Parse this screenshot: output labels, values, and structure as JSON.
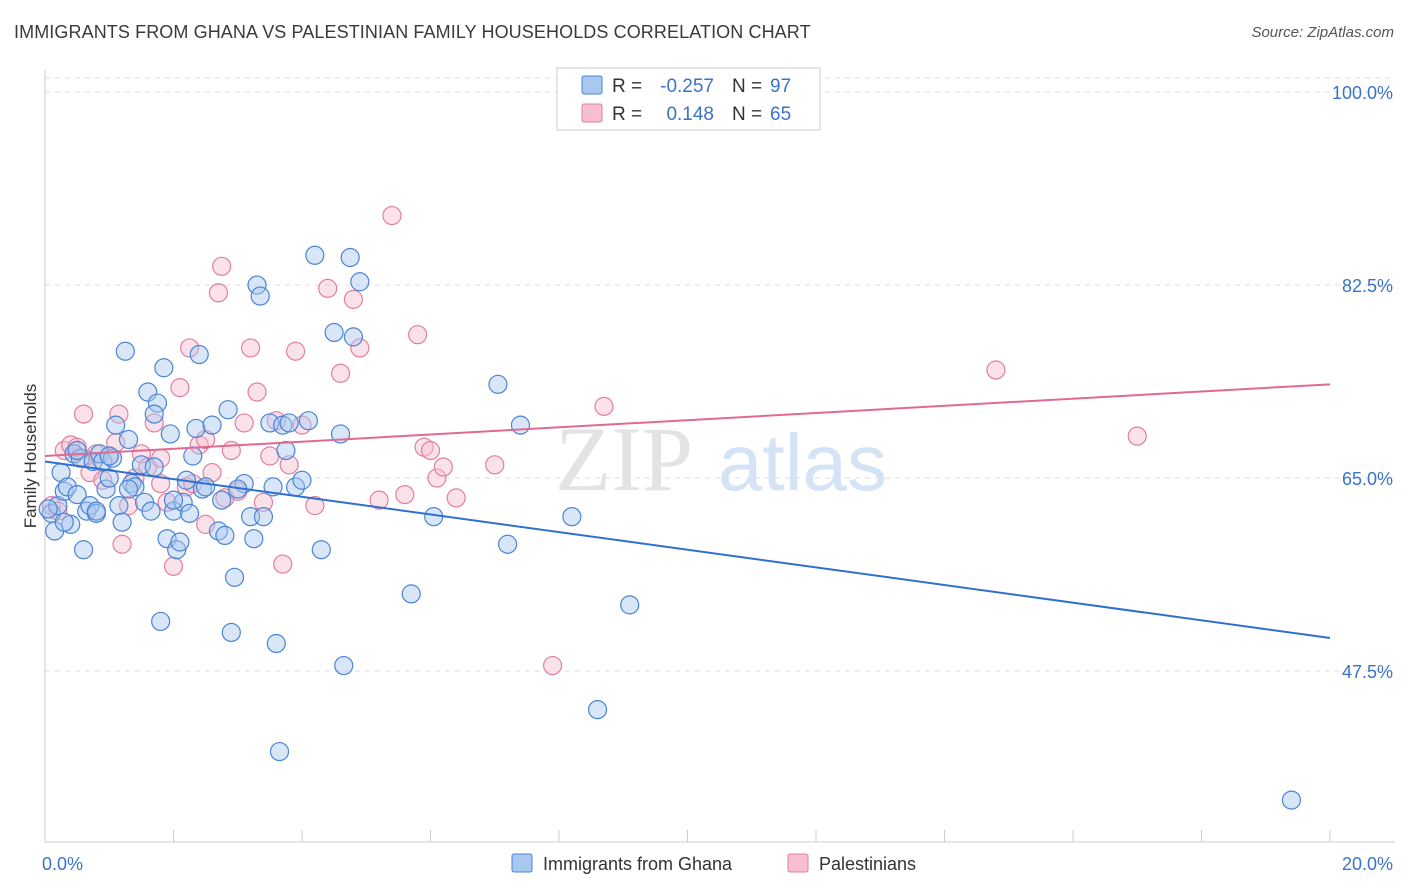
{
  "title": "IMMIGRANTS FROM GHANA VS PALESTINIAN FAMILY HOUSEHOLDS CORRELATION CHART",
  "source": "Source: ZipAtlas.com",
  "watermark": {
    "zip": "ZIP",
    "atlas": "atlas"
  },
  "colors": {
    "blue_fill": "#a8c8f0",
    "blue_stroke": "#4a84d4",
    "blue_line": "#2f6fcf",
    "pink_fill": "#f6bfd0",
    "pink_stroke": "#e07fa0",
    "pink_line": "#e06a92",
    "grid": "#dddddd",
    "tick_label": "#3a73c8"
  },
  "legend": {
    "rows": [
      {
        "r_label": "R =",
        "r_value": "-0.257",
        "n_label": "N =",
        "n_value": "97"
      },
      {
        "r_label": "R =",
        "r_value": "0.148",
        "n_label": "N =",
        "n_value": "65"
      }
    ]
  },
  "chart_data": {
    "type": "scatter",
    "title": "IMMIGRANTS FROM GHANA VS PALESTINIAN FAMILY HOUSEHOLDS CORRELATION CHART",
    "xlabel": "",
    "ylabel": "Family Households",
    "xlim": [
      0,
      20
    ],
    "ylim": [
      32,
      102
    ],
    "x_tick_labels": [
      "0.0%",
      "20.0%"
    ],
    "y_ticks": [
      100.0,
      82.5,
      65.0,
      47.5
    ],
    "y_tick_labels": [
      "100.0%",
      "82.5%",
      "65.0%",
      "47.5%"
    ],
    "grid": true,
    "legend_position": "top-center",
    "series": [
      {
        "name": "Immigrants from Ghana",
        "trend": [
          [
            0,
            66.5
          ],
          [
            20,
            50.5
          ]
        ],
        "points": [
          [
            0.1,
            61.8
          ],
          [
            0.15,
            60.2
          ],
          [
            0.2,
            62.5
          ],
          [
            0.25,
            65.5
          ],
          [
            0.3,
            63.8
          ],
          [
            0.35,
            64.2
          ],
          [
            0.4,
            60.8
          ],
          [
            0.45,
            67.2
          ],
          [
            0.5,
            63.5
          ],
          [
            0.55,
            66.8
          ],
          [
            0.6,
            58.5
          ],
          [
            0.65,
            62.0
          ],
          [
            0.7,
            62.5
          ],
          [
            0.75,
            66.5
          ],
          [
            0.8,
            61.8
          ],
          [
            0.85,
            67.2
          ],
          [
            0.9,
            66.5
          ],
          [
            0.95,
            64.0
          ],
          [
            1.0,
            65.0
          ],
          [
            1.05,
            66.8
          ],
          [
            1.1,
            69.8
          ],
          [
            1.15,
            62.5
          ],
          [
            1.2,
            61.0
          ],
          [
            1.25,
            76.5
          ],
          [
            1.3,
            68.5
          ],
          [
            1.35,
            64.5
          ],
          [
            1.4,
            64.2
          ],
          [
            1.5,
            66.2
          ],
          [
            1.55,
            62.8
          ],
          [
            1.6,
            72.8
          ],
          [
            1.65,
            62.0
          ],
          [
            1.7,
            66.0
          ],
          [
            1.75,
            71.8
          ],
          [
            1.8,
            52.0
          ],
          [
            1.85,
            75.0
          ],
          [
            1.9,
            59.5
          ],
          [
            1.95,
            69.0
          ],
          [
            2.0,
            62.0
          ],
          [
            2.05,
            58.5
          ],
          [
            2.1,
            59.2
          ],
          [
            2.15,
            62.8
          ],
          [
            2.2,
            64.8
          ],
          [
            2.25,
            61.8
          ],
          [
            2.3,
            67.0
          ],
          [
            2.35,
            69.5
          ],
          [
            2.4,
            76.2
          ],
          [
            2.45,
            64.0
          ],
          [
            2.5,
            64.2
          ],
          [
            2.6,
            69.8
          ],
          [
            2.7,
            60.2
          ],
          [
            2.75,
            63.0
          ],
          [
            2.8,
            59.8
          ],
          [
            2.85,
            71.2
          ],
          [
            2.9,
            51.0
          ],
          [
            2.95,
            56.0
          ],
          [
            3.1,
            64.5
          ],
          [
            3.2,
            61.5
          ],
          [
            3.25,
            59.5
          ],
          [
            3.3,
            82.5
          ],
          [
            3.35,
            81.5
          ],
          [
            3.4,
            61.5
          ],
          [
            3.5,
            70.0
          ],
          [
            3.55,
            64.2
          ],
          [
            3.6,
            50.0
          ],
          [
            3.65,
            40.2
          ],
          [
            3.7,
            69.8
          ],
          [
            3.75,
            67.5
          ],
          [
            3.8,
            70.0
          ],
          [
            3.9,
            64.2
          ],
          [
            4.0,
            64.8
          ],
          [
            4.1,
            70.2
          ],
          [
            4.2,
            85.2
          ],
          [
            4.3,
            58.5
          ],
          [
            4.5,
            78.2
          ],
          [
            4.6,
            69.0
          ],
          [
            4.65,
            48.0
          ],
          [
            4.75,
            85.0
          ],
          [
            4.8,
            77.8
          ],
          [
            4.9,
            82.8
          ],
          [
            5.7,
            54.5
          ],
          [
            6.05,
            61.5
          ],
          [
            7.05,
            73.5
          ],
          [
            7.2,
            59.0
          ],
          [
            7.4,
            69.8
          ],
          [
            8.2,
            61.5
          ],
          [
            8.6,
            44.0
          ],
          [
            9.1,
            53.5
          ],
          [
            19.4,
            35.8
          ],
          [
            0.05,
            62.2
          ],
          [
            0.3,
            61.0
          ],
          [
            0.5,
            67.5
          ],
          [
            1.0,
            67.0
          ],
          [
            1.3,
            64.0
          ],
          [
            2.0,
            63.0
          ],
          [
            3.0,
            64.0
          ],
          [
            1.7,
            70.8
          ],
          [
            0.8,
            62.0
          ]
        ]
      },
      {
        "name": "Palestinians",
        "trend": [
          [
            0,
            67.0
          ],
          [
            20,
            73.5
          ]
        ],
        "points": [
          [
            0.1,
            62.5
          ],
          [
            0.2,
            62.0
          ],
          [
            0.3,
            67.5
          ],
          [
            0.4,
            68.0
          ],
          [
            0.5,
            67.8
          ],
          [
            0.6,
            70.8
          ],
          [
            0.7,
            65.5
          ],
          [
            0.8,
            67.2
          ],
          [
            0.9,
            64.8
          ],
          [
            1.0,
            67.0
          ],
          [
            1.1,
            68.2
          ],
          [
            1.15,
            70.8
          ],
          [
            1.2,
            59.0
          ],
          [
            1.3,
            62.5
          ],
          [
            1.4,
            65.0
          ],
          [
            1.5,
            67.2
          ],
          [
            1.6,
            66.0
          ],
          [
            1.7,
            70.0
          ],
          [
            1.8,
            64.5
          ],
          [
            1.9,
            62.8
          ],
          [
            2.0,
            57.0
          ],
          [
            2.1,
            73.2
          ],
          [
            2.2,
            64.2
          ],
          [
            2.25,
            76.8
          ],
          [
            2.3,
            64.5
          ],
          [
            2.4,
            68.0
          ],
          [
            2.5,
            60.8
          ],
          [
            2.6,
            65.5
          ],
          [
            2.7,
            81.8
          ],
          [
            2.75,
            84.2
          ],
          [
            2.8,
            63.2
          ],
          [
            2.9,
            67.5
          ],
          [
            3.0,
            63.8
          ],
          [
            3.1,
            70.0
          ],
          [
            3.2,
            76.8
          ],
          [
            3.3,
            72.8
          ],
          [
            3.4,
            62.8
          ],
          [
            3.5,
            67.0
          ],
          [
            3.6,
            70.2
          ],
          [
            3.7,
            57.2
          ],
          [
            3.8,
            66.2
          ],
          [
            3.9,
            76.5
          ],
          [
            4.0,
            69.8
          ],
          [
            4.2,
            62.5
          ],
          [
            4.4,
            82.2
          ],
          [
            4.6,
            74.5
          ],
          [
            4.8,
            81.2
          ],
          [
            4.9,
            76.8
          ],
          [
            5.2,
            63.0
          ],
          [
            5.4,
            88.8
          ],
          [
            5.6,
            63.5
          ],
          [
            5.8,
            78.0
          ],
          [
            5.9,
            67.8
          ],
          [
            6.0,
            67.5
          ],
          [
            6.1,
            65.0
          ],
          [
            6.2,
            66.0
          ],
          [
            6.4,
            63.2
          ],
          [
            7.0,
            66.2
          ],
          [
            7.9,
            48.0
          ],
          [
            8.7,
            71.5
          ],
          [
            14.8,
            74.8
          ],
          [
            17.0,
            68.8
          ],
          [
            0.6,
            66.8
          ],
          [
            1.8,
            66.8
          ],
          [
            2.5,
            68.5
          ]
        ]
      }
    ]
  }
}
